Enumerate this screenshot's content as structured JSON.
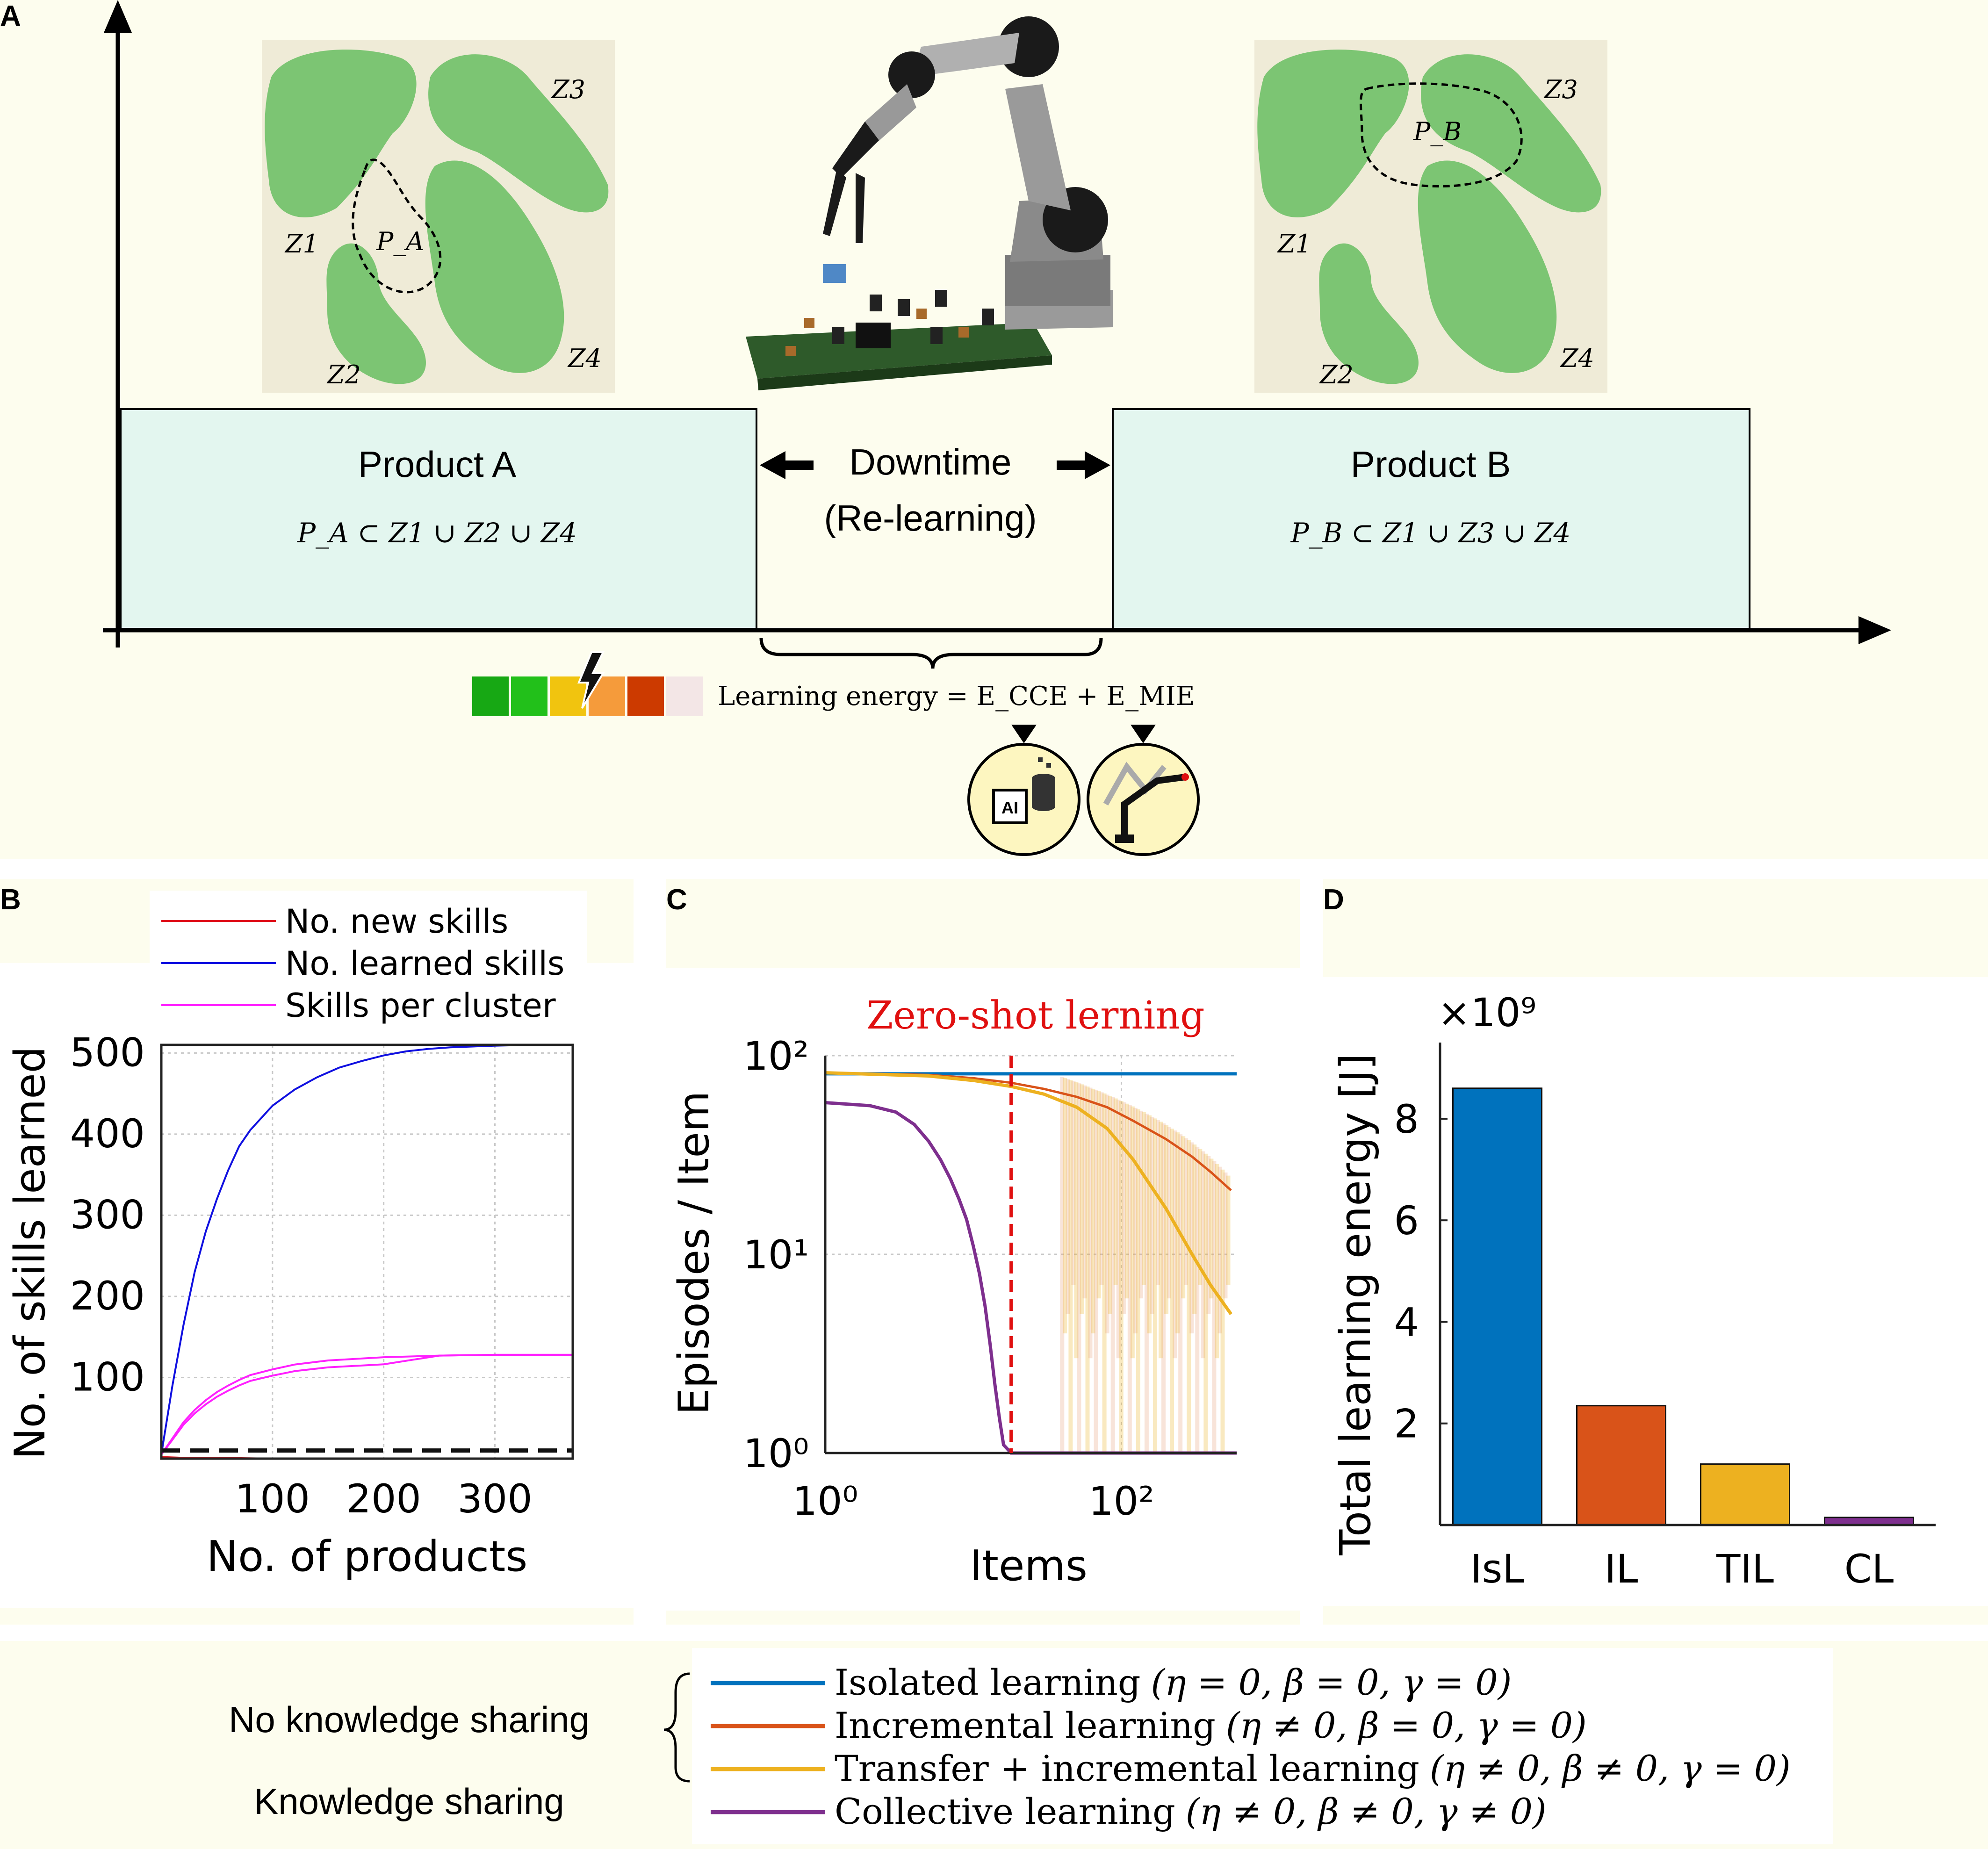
{
  "colors": {
    "panel_bg": "#fdfdee",
    "timeline_box": "#e3f6ef",
    "cluster_bg": "#efebd7",
    "cluster_green": "#7cc573",
    "isl": "#0072bd",
    "il": "#d95319",
    "til": "#edb120",
    "cl": "#7e2f8e",
    "new_skills": "#e0141e",
    "learned_skills": "#1010e0",
    "per_cluster": "#ff20ff",
    "zero_shot": "#e01010"
  },
  "panelA": {
    "label": "A",
    "product_a": {
      "title": "Product A",
      "formula": "P_A ⊂ Z1 ∪ Z2 ∪ Z4"
    },
    "product_b": {
      "title": "Product B",
      "formula": "P_B ⊂ Z1 ∪ Z3 ∪ Z4"
    },
    "downtime": {
      "line1": "Downtime",
      "line2": "(Re-learning)"
    },
    "energy_label": "Learning energy = E_CCE + E_MIE",
    "energy_scale": [
      "#17a814",
      "#22c01a",
      "#f1c40f",
      "#f59b3b",
      "#cc3a00",
      "#f3e6e6"
    ],
    "cluster_map_a": {
      "z1": "Z1",
      "z2": "Z2",
      "z3": "Z3",
      "z4": "Z4",
      "product": "P_A"
    },
    "cluster_map_b": {
      "z1": "Z1",
      "z2": "Z2",
      "z3": "Z3",
      "z4": "Z4",
      "product": "P_B"
    },
    "icons": [
      "ai-database-icon",
      "robot-arm-trajectory-icon"
    ],
    "ai_chip_text": "AI"
  },
  "chart_data": [
    {
      "panel": "B",
      "type": "line",
      "xlabel": "No. of products",
      "ylabel": "No. of skills learned",
      "xlim": [
        0,
        370
      ],
      "ylim": [
        0,
        510
      ],
      "xticks": [
        100,
        200,
        300
      ],
      "yticks": [
        100,
        200,
        300,
        400,
        500
      ],
      "grid": true,
      "legend_position": "top",
      "series": [
        {
          "name": "No. new skills",
          "color": "#e0141e",
          "x": [
            0,
            20,
            50,
            100,
            150,
            200,
            250,
            300,
            370
          ],
          "y": [
            2,
            1,
            1,
            0,
            0,
            0,
            0,
            0,
            0
          ]
        },
        {
          "name": "No. learned skills",
          "color": "#1010e0",
          "x": [
            0,
            10,
            20,
            30,
            40,
            50,
            60,
            70,
            80,
            90,
            100,
            120,
            140,
            160,
            180,
            200,
            220,
            240,
            260,
            280,
            300,
            330,
            370
          ],
          "y": [
            5,
            90,
            165,
            230,
            280,
            320,
            355,
            385,
            405,
            420,
            435,
            455,
            470,
            482,
            490,
            497,
            502,
            505,
            507,
            508,
            509,
            510,
            510
          ]
        },
        {
          "name": "Skills per cluster",
          "color": "#ff20ff",
          "x": [
            0,
            10,
            20,
            30,
            40,
            50,
            60,
            70,
            80,
            100,
            120,
            150,
            200,
            250,
            300,
            370
          ],
          "y": [
            5,
            25,
            45,
            60,
            72,
            82,
            90,
            97,
            103,
            110,
            116,
            121,
            125,
            127,
            128,
            128
          ]
        },
        {
          "name": "",
          "color": "#111111",
          "dashed": true,
          "x": [
            0,
            370
          ],
          "y": [
            10,
            10
          ]
        }
      ]
    },
    {
      "panel": "C",
      "type": "line",
      "xlabel": "Items",
      "ylabel": "Episodes / Item",
      "xscale": "log",
      "yscale": "log",
      "xlim": [
        1,
        600
      ],
      "ylim": [
        1,
        100
      ],
      "xticks": [
        1,
        100
      ],
      "yticks": [
        1,
        10,
        100
      ],
      "xtick_labels": [
        "10^0",
        "10^2"
      ],
      "ytick_labels": [
        "10^0",
        "10^1",
        "10^2"
      ],
      "grid": true,
      "annotation": {
        "text": "Zero-shot lerning",
        "x": 18
      },
      "series": [
        {
          "name": "Isolated learning",
          "color": "#0072bd",
          "x": [
            1,
            600
          ],
          "y": [
            81,
            81
          ]
        },
        {
          "name": "Incremental learning",
          "color": "#d95319",
          "x": [
            1,
            5,
            10,
            18,
            30,
            50,
            80,
            120,
            200,
            300,
            400,
            550
          ],
          "y": [
            82,
            80,
            77,
            73,
            68,
            62,
            55,
            47,
            38,
            31,
            26,
            21
          ]
        },
        {
          "name": "Transfer + incremental learning",
          "color": "#edb120",
          "x": [
            1,
            5,
            10,
            18,
            30,
            50,
            80,
            120,
            200,
            300,
            400,
            550
          ],
          "y": [
            82,
            79,
            75,
            70,
            64,
            55,
            43,
            30,
            17,
            10,
            7,
            5
          ]
        },
        {
          "name": "Collective learning",
          "color": "#7e2f8e",
          "x": [
            1,
            2,
            3,
            4,
            5,
            6,
            7,
            8,
            9,
            10,
            11,
            12,
            13,
            14,
            15,
            16,
            18,
            30,
            100,
            600
          ],
          "y": [
            58,
            56,
            52,
            45,
            37,
            30,
            24,
            19,
            15,
            11,
            8,
            5.5,
            3.5,
            2.2,
            1.5,
            1.1,
            1,
            1,
            1,
            1
          ]
        }
      ]
    },
    {
      "panel": "D",
      "type": "bar",
      "ylabel": "Total learning energy [J]",
      "multiplier": "×10^9",
      "categories": [
        "IsL",
        "IL",
        "TIL",
        "CL"
      ],
      "values": [
        8.6,
        2.35,
        1.2,
        0.15
      ],
      "colors": [
        "#0072bd",
        "#d95319",
        "#edb120",
        "#7e2f8e"
      ],
      "ylim": [
        0,
        9.5
      ],
      "yticks": [
        2,
        4,
        6,
        8
      ]
    }
  ],
  "labels": {
    "panelB": "B",
    "panelC": "C",
    "panelD": "D",
    "zero_shot": "Zero-shot lerning",
    "multiplier": "×10⁹",
    "b_x": [
      "100",
      "200",
      "300"
    ],
    "b_y": [
      "100",
      "200",
      "300",
      "400",
      "500"
    ],
    "c_x": [
      "10⁰",
      "10²"
    ],
    "c_y": [
      "10⁰",
      "10¹",
      "10²"
    ],
    "d_y": [
      "2",
      "4",
      "6",
      "8"
    ],
    "d_x": [
      "IsL",
      "IL",
      "TIL",
      "CL"
    ]
  },
  "legend_bottom": {
    "no_sharing": "No knowledge sharing",
    "sharing": "Knowledge sharing",
    "items": [
      {
        "name": "Isolated learning",
        "params": "(η = 0, β = 0, γ = 0)"
      },
      {
        "name": "Incremental learning",
        "params": "(η ≠ 0, β = 0, γ = 0)"
      },
      {
        "name": "Transfer + incremental learning",
        "params": "(η ≠ 0, β ≠ 0, γ = 0)"
      },
      {
        "name": "Collective learning",
        "params": "(η ≠ 0, β ≠ 0, γ ≠ 0)"
      }
    ]
  }
}
